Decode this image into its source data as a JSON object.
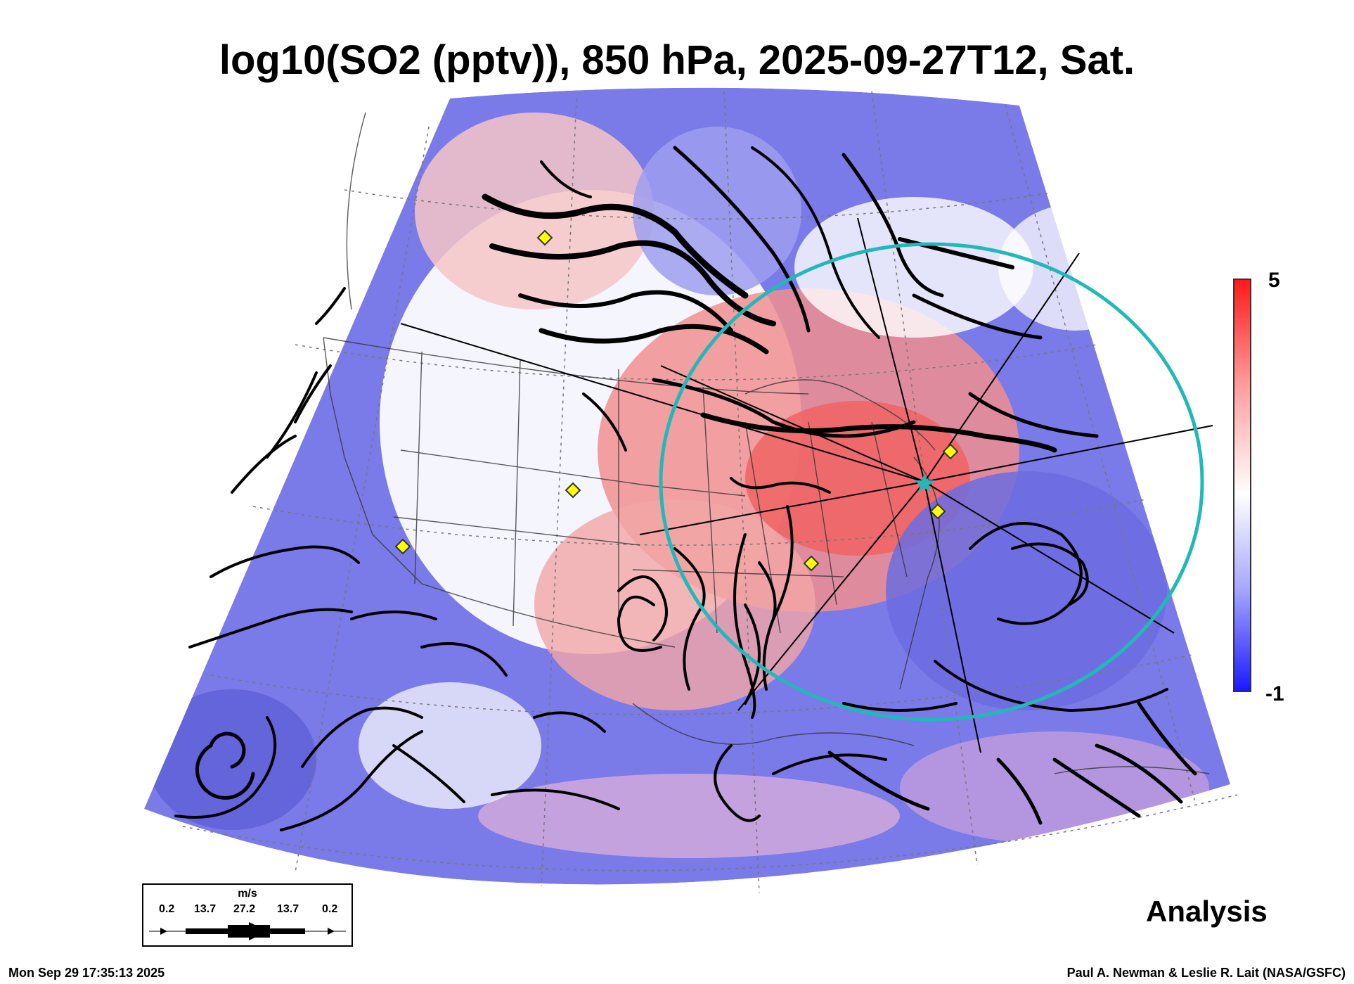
{
  "title": "log10(SO2 (pptv)), 850 hPa, 2025-09-27T12, Sat.",
  "colorbar": {
    "max_label": "5",
    "min_label": "-1",
    "colors": [
      "#ff1a1a",
      "#ffffff",
      "#1a1aff"
    ]
  },
  "legend": {
    "units": "m/s",
    "values": [
      "0.2",
      "13.7",
      "27.2",
      "13.7",
      "0.2"
    ]
  },
  "product_label": "Analysis",
  "timestamp": "Mon Sep 29 17:35:13 2025",
  "credit": "Paul A. Newman & Leslie R. Lait (NASA/GSFC)",
  "marker_color": "#ffff00",
  "circle_color": "#22b8b8"
}
